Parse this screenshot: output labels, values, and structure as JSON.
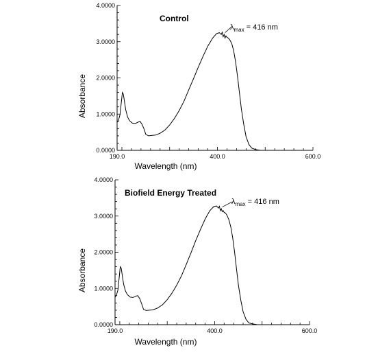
{
  "chart_data": [
    {
      "type": "line",
      "title": "Control",
      "xlabel": "Wavelength (nm)",
      "ylabel": "Absorbance",
      "xlim": [
        190.0,
        600.0
      ],
      "ylim": [
        0.0,
        4.0
      ],
      "x_ticks": [
        "190.0",
        "400.0",
        "600.0"
      ],
      "y_ticks": [
        "0.0000",
        "1.0000",
        "2.0000",
        "3.0000",
        "4.0000"
      ],
      "annotation": {
        "lambda_symbol": "λ",
        "subscript": "max",
        "text": " = 416 nm",
        "x": 416,
        "y": 3.25
      },
      "grid": false,
      "series": [
        {
          "x": [
            190,
            193,
            196,
            199,
            201,
            203,
            205,
            208,
            212,
            216,
            222,
            228,
            234,
            238,
            242,
            246,
            250,
            256,
            262,
            270,
            280,
            290,
            300,
            310,
            320,
            330,
            340,
            350,
            360,
            370,
            380,
            390,
            398,
            404,
            408,
            410,
            412,
            414,
            416,
            418,
            420,
            423,
            426,
            430,
            434,
            438,
            442,
            446,
            450,
            455,
            460,
            466,
            472,
            480,
            490,
            500,
            510,
            520
          ],
          "y": [
            0.78,
            0.84,
            0.98,
            1.35,
            1.6,
            1.55,
            1.38,
            1.12,
            0.92,
            0.82,
            0.75,
            0.74,
            0.78,
            0.8,
            0.72,
            0.6,
            0.44,
            0.4,
            0.41,
            0.42,
            0.47,
            0.56,
            0.7,
            0.88,
            1.1,
            1.36,
            1.67,
            1.98,
            2.3,
            2.6,
            2.88,
            3.1,
            3.22,
            3.25,
            3.2,
            3.26,
            3.14,
            3.2,
            3.1,
            3.16,
            3.12,
            3.1,
            3.05,
            2.95,
            2.75,
            2.45,
            2.05,
            1.6,
            1.15,
            0.72,
            0.38,
            0.16,
            0.06,
            0.02,
            0.0,
            0.0,
            0.0,
            0.0
          ]
        }
      ]
    },
    {
      "type": "line",
      "title": "Biofield Energy Treated",
      "xlabel": "Wavelength (nm)",
      "ylabel": "Absorbance",
      "xlim": [
        190.0,
        600.0
      ],
      "ylim": [
        0.0,
        4.0
      ],
      "x_ticks": [
        "190.0",
        "400.0",
        "600.0"
      ],
      "y_ticks": [
        "0.0000",
        "1.0000",
        "2.0000",
        "3.0000",
        "4.0000"
      ],
      "annotation": {
        "lambda_symbol": "λ",
        "subscript": "max",
        "text": " = 416 nm",
        "x": 416,
        "y": 3.25
      },
      "grid": false,
      "series": [
        {
          "x": [
            190,
            193,
            196,
            199,
            201,
            203,
            205,
            208,
            212,
            216,
            222,
            228,
            234,
            238,
            242,
            246,
            250,
            256,
            262,
            270,
            280,
            290,
            300,
            310,
            320,
            330,
            340,
            350,
            360,
            370,
            380,
            390,
            398,
            404,
            408,
            410,
            412,
            414,
            416,
            418,
            420,
            423,
            426,
            430,
            434,
            438,
            442,
            446,
            450,
            455,
            460,
            466,
            472,
            480,
            490,
            500,
            510,
            520
          ],
          "y": [
            0.76,
            0.82,
            0.96,
            1.33,
            1.6,
            1.56,
            1.38,
            1.12,
            0.93,
            0.83,
            0.76,
            0.75,
            0.79,
            0.8,
            0.72,
            0.58,
            0.42,
            0.39,
            0.4,
            0.41,
            0.46,
            0.55,
            0.69,
            0.87,
            1.09,
            1.35,
            1.66,
            1.98,
            2.32,
            2.63,
            2.92,
            3.15,
            3.26,
            3.28,
            3.22,
            3.27,
            3.15,
            3.2,
            3.12,
            3.15,
            3.1,
            3.08,
            3.02,
            2.9,
            2.7,
            2.4,
            2.0,
            1.55,
            1.1,
            0.68,
            0.36,
            0.15,
            0.05,
            0.02,
            0.0,
            0.0,
            0.0,
            0.0
          ]
        }
      ]
    }
  ]
}
